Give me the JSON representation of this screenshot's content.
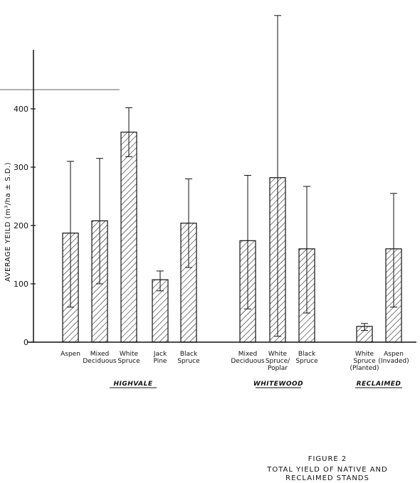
{
  "chart_data": {
    "type": "bar",
    "ylabel": "AVERAGE YEILD (m³/ha ± S.D.)",
    "yticks": [
      0,
      100,
      200,
      300,
      400
    ],
    "ylim": [
      0,
      560
    ],
    "groups": [
      {
        "name": "HIGHVALE",
        "bars": [
          {
            "label": [
              "Aspen"
            ],
            "value": 187,
            "sd_low": 60,
            "sd_high": 310
          },
          {
            "label": [
              "Mixed",
              "Deciduous"
            ],
            "value": 208,
            "sd_low": 100,
            "sd_high": 315
          },
          {
            "label": [
              "White",
              "Spruce"
            ],
            "value": 360,
            "sd_low": 318,
            "sd_high": 402
          },
          {
            "label": [
              "Jack",
              "Pine"
            ],
            "value": 107,
            "sd_low": 88,
            "sd_high": 122
          },
          {
            "label": [
              "Black",
              "Spruce"
            ],
            "value": 204,
            "sd_low": 128,
            "sd_high": 280
          }
        ]
      },
      {
        "name": "WHITEWOOD",
        "bars": [
          {
            "label": [
              "Mixed",
              "Deciduous"
            ],
            "value": 174,
            "sd_low": 57,
            "sd_high": 286
          },
          {
            "label": [
              "White",
              "Spruce/",
              "Poplar"
            ],
            "value": 282,
            "sd_low": 10,
            "sd_high": 560
          },
          {
            "label": [
              "Black",
              "Spruce"
            ],
            "value": 160,
            "sd_low": 50,
            "sd_high": 267
          }
        ]
      },
      {
        "name": "RECLAIMED",
        "bars": [
          {
            "label": [
              "White",
              "Spruce",
              "(Planted)"
            ],
            "value": 27,
            "sd_low": 20,
            "sd_high": 32
          },
          {
            "label": [
              "Aspen",
              "(Invaded)"
            ],
            "value": 160,
            "sd_low": 60,
            "sd_high": 255
          }
        ]
      }
    ],
    "hatch": "diagonal",
    "bar_color": "#111111",
    "figure_number": "FIGURE 2",
    "figure_title": [
      "TOTAL YIELD OF NATIVE AND",
      "RECLAIMED STANDS"
    ]
  }
}
